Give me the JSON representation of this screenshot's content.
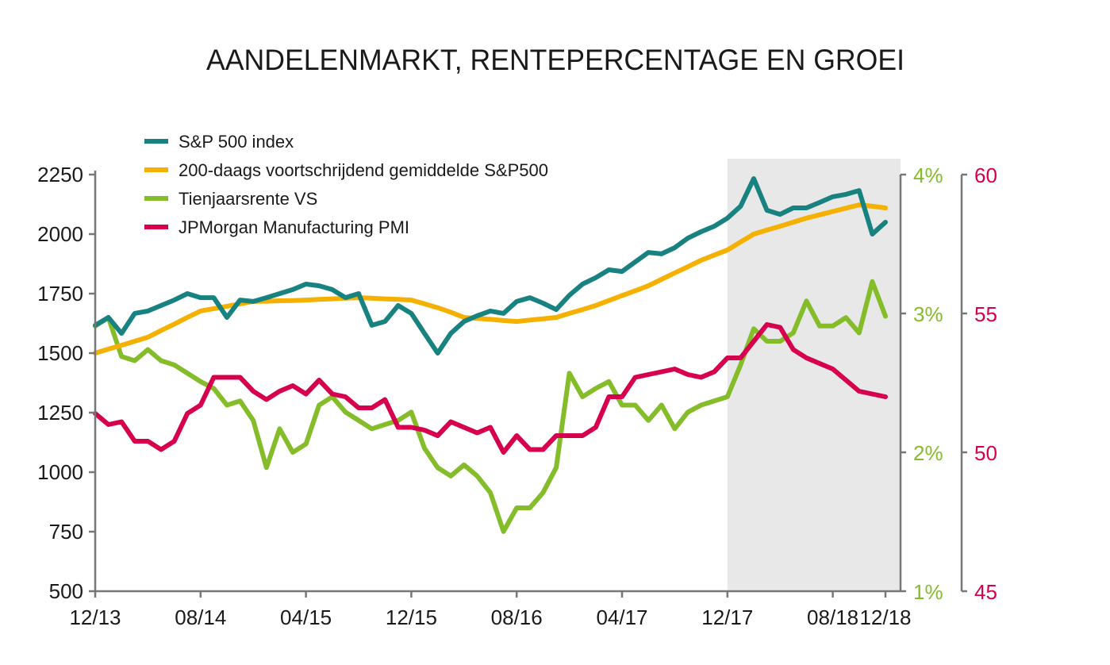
{
  "chart_data": {
    "type": "line",
    "title": "AANDELENMARKT, RENTEPERCENTAGE EN GROEI",
    "x": [
      "12/13",
      "01/14",
      "02/14",
      "03/14",
      "04/14",
      "05/14",
      "06/14",
      "07/14",
      "08/14",
      "09/14",
      "10/14",
      "11/14",
      "12/14",
      "01/15",
      "02/15",
      "03/15",
      "04/15",
      "05/15",
      "06/15",
      "07/15",
      "08/15",
      "09/15",
      "10/15",
      "11/15",
      "12/15",
      "01/16",
      "02/16",
      "03/16",
      "04/16",
      "05/16",
      "06/16",
      "07/16",
      "08/16",
      "09/16",
      "10/16",
      "11/16",
      "12/16",
      "01/17",
      "02/17",
      "03/17",
      "04/17",
      "05/17",
      "06/17",
      "07/17",
      "08/17",
      "09/17",
      "10/17",
      "11/17",
      "12/17",
      "01/18",
      "02/18",
      "03/18",
      "04/18",
      "05/18",
      "06/18",
      "07/18",
      "08/18",
      "09/18",
      "10/18",
      "11/18",
      "12/18"
    ],
    "x_ticks": [
      "12/13",
      "08/14",
      "04/15",
      "12/15",
      "08/16",
      "04/17",
      "12/17",
      "08/18",
      "12/18"
    ],
    "highlight": {
      "from": "12/17",
      "color": "#e8e8e8"
    },
    "axes": {
      "left": {
        "ylim": [
          500,
          2250
        ],
        "ticks": [
          "500",
          "750",
          "1000",
          "1250",
          "1500",
          "1750",
          "2000",
          "2250"
        ]
      },
      "right1": {
        "ylim": [
          1,
          4
        ],
        "ticks": [
          "1%",
          "2%",
          "3%",
          "4%"
        ],
        "color": "#84bc2a"
      },
      "right2": {
        "ylim": [
          45,
          60
        ],
        "ticks": [
          "45",
          "50",
          "55",
          "60"
        ],
        "color": "#d6004f"
      }
    },
    "legend_position": "top-left",
    "series": [
      {
        "name": "S&P 500 index",
        "axis": "left",
        "color": "#17827f",
        "values": [
          1617,
          1650,
          1583,
          1667,
          1677,
          1700,
          1723,
          1750,
          1733,
          1733,
          1650,
          1723,
          1717,
          1733,
          1750,
          1767,
          1790,
          1783,
          1767,
          1733,
          1750,
          1617,
          1633,
          1700,
          1667,
          1583,
          1500,
          1583,
          1633,
          1657,
          1677,
          1667,
          1717,
          1733,
          1710,
          1683,
          1743,
          1790,
          1817,
          1850,
          1843,
          1883,
          1923,
          1917,
          1943,
          1983,
          2010,
          2033,
          2067,
          2117,
          2233,
          2100,
          2083,
          2110,
          2110,
          2133,
          2157,
          2167,
          2183,
          2000,
          2050
        ]
      },
      {
        "name": "200-daags voortschrijdend gemiddelde S&P500",
        "axis": "left",
        "color": "#f5b000",
        "values": [
          1500,
          1517,
          1533,
          1550,
          1567,
          1595,
          1622,
          1650,
          1677,
          1687,
          1697,
          1707,
          1717,
          1718,
          1720,
          1721,
          1723,
          1726,
          1728,
          1731,
          1733,
          1731,
          1728,
          1726,
          1723,
          1707,
          1691,
          1672,
          1650,
          1646,
          1642,
          1637,
          1633,
          1639,
          1644,
          1650,
          1667,
          1683,
          1700,
          1721,
          1742,
          1762,
          1783,
          1810,
          1837,
          1863,
          1890,
          1912,
          1933,
          1967,
          2000,
          2017,
          2033,
          2050,
          2067,
          2081,
          2095,
          2109,
          2123,
          2117,
          2110
        ]
      },
      {
        "name": "Tienjaarsrente VS",
        "axis": "right1",
        "color": "#84bc2a",
        "values": [
          2.91,
          2.97,
          2.69,
          2.66,
          2.74,
          2.66,
          2.63,
          2.57,
          2.51,
          2.46,
          2.34,
          2.37,
          2.23,
          1.89,
          2.17,
          2.0,
          2.06,
          2.34,
          2.4,
          2.29,
          2.23,
          2.17,
          2.2,
          2.23,
          2.29,
          2.03,
          1.89,
          1.83,
          1.91,
          1.83,
          1.71,
          1.43,
          1.6,
          1.6,
          1.71,
          1.89,
          2.57,
          2.4,
          2.46,
          2.51,
          2.34,
          2.34,
          2.23,
          2.34,
          2.17,
          2.29,
          2.34,
          2.37,
          2.4,
          2.63,
          2.89,
          2.8,
          2.8,
          2.86,
          3.09,
          2.91,
          2.91,
          2.97,
          2.86,
          3.23,
          2.98
        ]
      },
      {
        "name": "JPMorgan Manufacturing PMI",
        "axis": "right2",
        "color": "#d6004f",
        "values": [
          51.4,
          51.0,
          51.1,
          50.4,
          50.4,
          50.1,
          50.4,
          51.4,
          51.7,
          52.7,
          52.7,
          52.7,
          52.2,
          51.9,
          52.2,
          52.4,
          52.1,
          52.6,
          52.1,
          52.0,
          51.6,
          51.6,
          51.9,
          50.9,
          50.9,
          50.8,
          50.6,
          51.1,
          50.9,
          50.7,
          50.9,
          50.0,
          50.6,
          50.1,
          50.1,
          50.6,
          50.6,
          50.6,
          50.9,
          52.0,
          52.0,
          52.7,
          52.8,
          52.9,
          53.0,
          52.8,
          52.7,
          52.9,
          53.4,
          53.4,
          54.0,
          54.6,
          54.5,
          53.7,
          53.4,
          53.2,
          53.0,
          52.6,
          52.2,
          52.1,
          52.0
        ]
      }
    ]
  }
}
